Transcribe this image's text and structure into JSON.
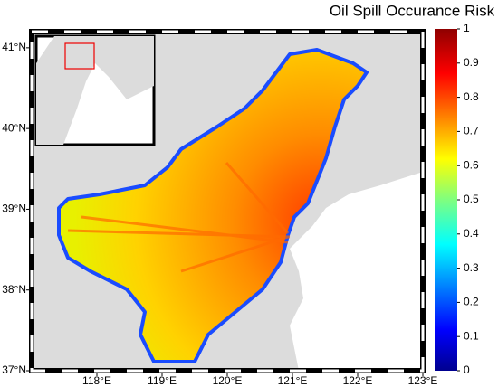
{
  "map": {
    "title": "Oil Spill Occurance Risk",
    "xlim": [
      117,
      123
    ],
    "ylim": [
      37,
      41.2
    ],
    "xticks": [
      {
        "value": 118,
        "label": "118°E"
      },
      {
        "value": 119,
        "label": "119°E"
      },
      {
        "value": 120,
        "label": "120°E"
      },
      {
        "value": 121,
        "label": "121°E"
      },
      {
        "value": 122,
        "label": "122°E"
      },
      {
        "value": 123,
        "label": "123°E"
      }
    ],
    "yticks": [
      {
        "value": 37,
        "label": "37°N"
      },
      {
        "value": 38,
        "label": "38°N"
      },
      {
        "value": 39,
        "label": "39°N"
      },
      {
        "value": 40,
        "label": "40°N"
      },
      {
        "value": 41,
        "label": "41°N"
      }
    ],
    "colorbar": {
      "lim": [
        0,
        1
      ],
      "ticks": [
        0,
        0.1,
        0.2,
        0.3,
        0.4,
        0.5,
        0.6,
        0.7,
        0.8,
        0.9,
        1
      ]
    }
  }
}
